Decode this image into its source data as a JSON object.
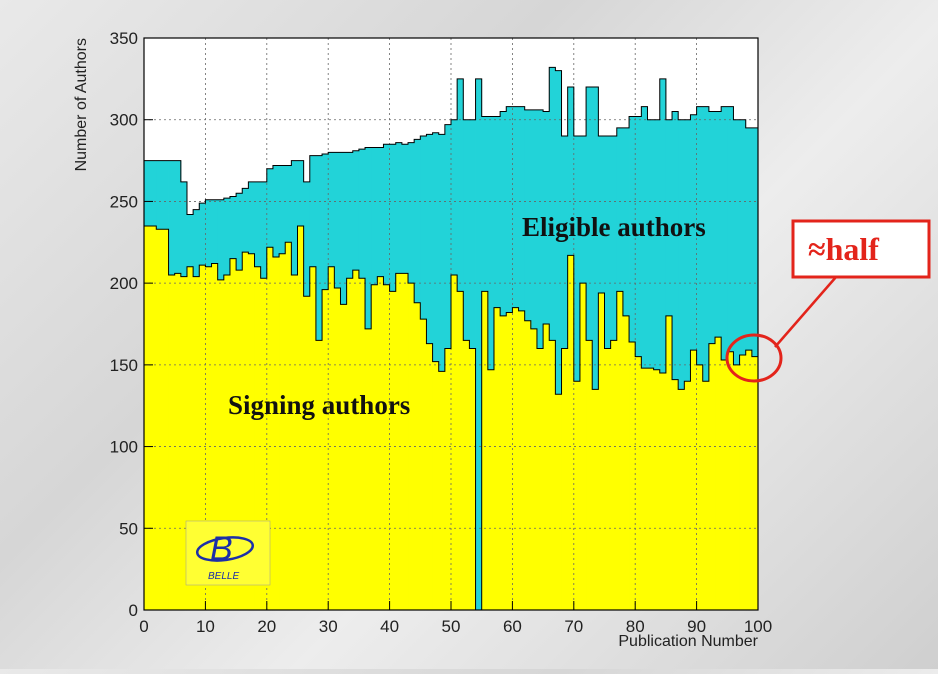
{
  "chart_data": {
    "type": "area",
    "xlabel": "Publication Number",
    "ylabel": "Number of Authors",
    "xlim": [
      0,
      100
    ],
    "ylim": [
      0,
      350
    ],
    "x_ticks": [
      0,
      10,
      20,
      30,
      40,
      50,
      60,
      70,
      80,
      90,
      100
    ],
    "y_ticks": [
      0,
      50,
      100,
      150,
      200,
      250,
      300,
      350
    ],
    "grid": true,
    "x": [
      0,
      1,
      2,
      3,
      4,
      5,
      6,
      7,
      8,
      9,
      10,
      11,
      12,
      13,
      14,
      15,
      16,
      17,
      18,
      19,
      20,
      21,
      22,
      23,
      24,
      25,
      26,
      27,
      28,
      29,
      30,
      31,
      32,
      33,
      34,
      35,
      36,
      37,
      38,
      39,
      40,
      41,
      42,
      43,
      44,
      45,
      46,
      47,
      48,
      49,
      50,
      51,
      52,
      53,
      54,
      55,
      56,
      57,
      58,
      59,
      60,
      61,
      62,
      63,
      64,
      65,
      66,
      67,
      68,
      69,
      70,
      71,
      72,
      73,
      74,
      75,
      76,
      77,
      78,
      79,
      80,
      81,
      82,
      83,
      84,
      85,
      86,
      87,
      88,
      89,
      90,
      91,
      92,
      93,
      94,
      95,
      96,
      97,
      98,
      99
    ],
    "series": [
      {
        "name": "Eligible authors",
        "color": "#22d3d8",
        "values": [
          275,
          275,
          275,
          275,
          275,
          275,
          262,
          242,
          245,
          249,
          251,
          251,
          251,
          252,
          253,
          255,
          258,
          262,
          262,
          262,
          270,
          272,
          272,
          272,
          275,
          275,
          262,
          278,
          278,
          279,
          280,
          280,
          280,
          280,
          281,
          282,
          283,
          283,
          283,
          285,
          285,
          286,
          285,
          286,
          288,
          290,
          291,
          292,
          291,
          297,
          300,
          325,
          300,
          300,
          325,
          302,
          302,
          302,
          305,
          308,
          308,
          308,
          306,
          306,
          306,
          305,
          332,
          330,
          290,
          320,
          290,
          290,
          320,
          320,
          290,
          290,
          290,
          295,
          295,
          302,
          302,
          308,
          300,
          300,
          325,
          300,
          305,
          300,
          300,
          303,
          308,
          308,
          305,
          305,
          308,
          308,
          300,
          300,
          295,
          295
        ]
      },
      {
        "name": "Signing authors",
        "color": "#ffff00",
        "values": [
          235,
          235,
          233,
          233,
          205,
          206,
          204,
          210,
          204,
          211,
          210,
          212,
          202,
          205,
          215,
          208,
          219,
          218,
          210,
          203,
          222,
          216,
          218,
          225,
          205,
          235,
          192,
          210,
          165,
          196,
          210,
          197,
          187,
          203,
          208,
          203,
          172,
          199,
          204,
          199,
          195,
          206,
          206,
          200,
          188,
          178,
          163,
          152,
          146,
          160,
          205,
          195,
          165,
          160,
          0,
          195,
          147,
          185,
          180,
          182,
          185,
          183,
          177,
          172,
          160,
          175,
          165,
          132,
          160,
          217,
          140,
          200,
          165,
          135,
          194,
          160,
          165,
          195,
          180,
          164,
          155,
          148,
          148,
          147,
          145,
          180,
          141,
          135,
          140,
          159,
          150,
          140,
          163,
          167,
          153,
          158,
          150,
          156,
          159,
          155
        ]
      }
    ],
    "annotations": {
      "eligible_label": "Eligible authors",
      "signing_label": "Signing authors",
      "callout": "≈half"
    },
    "logo": {
      "mark": "B",
      "text": "BELLE"
    }
  }
}
